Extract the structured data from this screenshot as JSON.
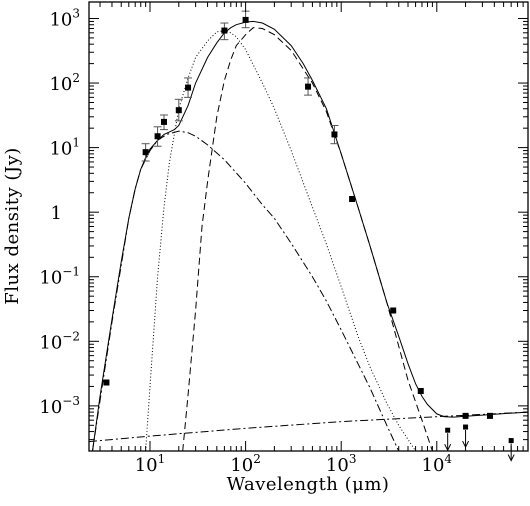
{
  "chart_data": {
    "type": "scatter",
    "title": "",
    "xlabel": "Wavelength (μm)",
    "ylabel": "Flux density (Jy)",
    "xscale": "log",
    "yscale": "log",
    "xlim": [
      2.3,
      90000
    ],
    "ylim": [
      0.0002,
      1800
    ],
    "grid": false,
    "legend": "none",
    "x_ticks": [
      {
        "value": 10,
        "base": "10",
        "exp": "1"
      },
      {
        "value": 100,
        "base": "10",
        "exp": "2"
      },
      {
        "value": 1000,
        "base": "10",
        "exp": "3"
      },
      {
        "value": 10000,
        "base": "10",
        "exp": "4"
      }
    ],
    "y_ticks": [
      {
        "value": 1000,
        "base": "10",
        "exp": "3"
      },
      {
        "value": 100,
        "base": "10",
        "exp": "2"
      },
      {
        "value": 10,
        "base": "10",
        "exp": "1"
      },
      {
        "value": 1,
        "base": "1",
        "exp": ""
      },
      {
        "value": 0.1,
        "base": "10",
        "exp": "−1"
      },
      {
        "value": 0.01,
        "base": "10",
        "exp": "−2"
      },
      {
        "value": 0.001,
        "base": "10",
        "exp": "−3"
      }
    ],
    "points": [
      {
        "x": 3.5,
        "y": 0.0023,
        "lo": 0.0023,
        "hi": 0.0023
      },
      {
        "x": 9,
        "y": 8.5,
        "lo": 6.2,
        "hi": 11.5
      },
      {
        "x": 12,
        "y": 15,
        "lo": 10.5,
        "hi": 21
      },
      {
        "x": 14,
        "y": 25,
        "lo": 19,
        "hi": 32
      },
      {
        "x": 20,
        "y": 38,
        "lo": 26,
        "hi": 56
      },
      {
        "x": 25,
        "y": 85,
        "lo": 60,
        "hi": 120
      },
      {
        "x": 60,
        "y": 650,
        "lo": 470,
        "hi": 850
      },
      {
        "x": 100,
        "y": 950,
        "lo": 720,
        "hi": 1300
      },
      {
        "x": 450,
        "y": 88,
        "lo": 65,
        "hi": 120
      },
      {
        "x": 850,
        "y": 16,
        "lo": 11.5,
        "hi": 22
      },
      {
        "x": 1300,
        "y": 1.6,
        "lo": 1.6,
        "hi": 1.6
      },
      {
        "x": 3500,
        "y": 0.03,
        "lo": 0.03,
        "hi": 0.03
      },
      {
        "x": 6800,
        "y": 0.0017,
        "lo": 0.0017,
        "hi": 0.0017
      },
      {
        "x": 20000,
        "y": 0.0007,
        "lo": 0.0007,
        "hi": 0.0007
      },
      {
        "x": 36000,
        "y": 0.0007,
        "lo": 0.0007,
        "hi": 0.0007
      }
    ],
    "upper_limits": [
      {
        "x": 13000,
        "y": 0.00042
      },
      {
        "x": 20000,
        "y": 0.00047
      },
      {
        "x": 60000,
        "y": 0.00029
      }
    ],
    "model_curves": [
      {
        "style": "solid",
        "points": [
          [
            2.5,
            0.0002
          ],
          [
            3,
            0.0014
          ],
          [
            4,
            0.022
          ],
          [
            5,
            0.17
          ],
          [
            6,
            0.8
          ],
          [
            7,
            2.3
          ],
          [
            8,
            4.6
          ],
          [
            9,
            7
          ],
          [
            10,
            9.5
          ],
          [
            12,
            13
          ],
          [
            14,
            16
          ],
          [
            16,
            17.5
          ],
          [
            18,
            19
          ],
          [
            20,
            22
          ],
          [
            25,
            45
          ],
          [
            30,
            100
          ],
          [
            40,
            250
          ],
          [
            50,
            420
          ],
          [
            60,
            600
          ],
          [
            70,
            720
          ],
          [
            80,
            800
          ],
          [
            100,
            880
          ],
          [
            120,
            900
          ],
          [
            150,
            850
          ],
          [
            200,
            680
          ],
          [
            300,
            380
          ],
          [
            400,
            200
          ],
          [
            500,
            110
          ],
          [
            700,
            40
          ],
          [
            1000,
            8
          ],
          [
            1500,
            1.2
          ],
          [
            2000,
            0.3
          ],
          [
            3000,
            0.04
          ],
          [
            4000,
            0.012
          ],
          [
            5000,
            0.0045
          ],
          [
            6000,
            0.0022
          ],
          [
            7000,
            0.0014
          ],
          [
            8000,
            0.00105
          ],
          [
            10000,
            0.00075
          ],
          [
            12000,
            0.00068
          ],
          [
            15000,
            0.00067
          ],
          [
            20000,
            0.00069
          ],
          [
            30000,
            0.00072
          ],
          [
            50000,
            0.00076
          ],
          [
            90000,
            0.0008
          ]
        ]
      },
      {
        "style": "dashed",
        "points": [
          [
            22,
            0.0002
          ],
          [
            25,
            0.0015
          ],
          [
            30,
            0.03
          ],
          [
            35,
            0.6
          ],
          [
            40,
            3
          ],
          [
            50,
            30
          ],
          [
            60,
            110
          ],
          [
            70,
            230
          ],
          [
            80,
            380
          ],
          [
            100,
            560
          ],
          [
            120,
            720
          ],
          [
            150,
            700
          ],
          [
            200,
            560
          ],
          [
            300,
            320
          ],
          [
            500,
            100
          ],
          [
            700,
            36
          ],
          [
            1000,
            8
          ],
          [
            1500,
            1.2
          ],
          [
            2000,
            0.3
          ],
          [
            3000,
            0.04
          ],
          [
            5000,
            0.0025
          ],
          [
            7000,
            0.0006
          ],
          [
            9000,
            0.0002
          ]
        ]
      },
      {
        "style": "dotted",
        "points": [
          [
            9,
            0.0002
          ],
          [
            10,
            0.002
          ],
          [
            12,
            0.1
          ],
          [
            14,
            1.2
          ],
          [
            16,
            6
          ],
          [
            20,
            40
          ],
          [
            25,
            120
          ],
          [
            30,
            250
          ],
          [
            40,
            450
          ],
          [
            50,
            620
          ],
          [
            60,
            650
          ],
          [
            70,
            600
          ],
          [
            80,
            520
          ],
          [
            100,
            330
          ],
          [
            150,
            100
          ],
          [
            200,
            40
          ],
          [
            300,
            9
          ],
          [
            500,
            1.2
          ],
          [
            700,
            0.32
          ],
          [
            1000,
            0.07
          ],
          [
            1500,
            0.012
          ],
          [
            2000,
            0.004
          ],
          [
            3000,
            0.0011
          ],
          [
            4000,
            0.0005
          ],
          [
            6000,
            0.0002
          ]
        ]
      },
      {
        "style": "dashdot",
        "points": [
          [
            2.5,
            0.0002
          ],
          [
            3,
            0.0012
          ],
          [
            4,
            0.02
          ],
          [
            5,
            0.15
          ],
          [
            6,
            0.8
          ],
          [
            7,
            2.3
          ],
          [
            8,
            4.6
          ],
          [
            10,
            9
          ],
          [
            12,
            13
          ],
          [
            15,
            16
          ],
          [
            20,
            18
          ],
          [
            25,
            17
          ],
          [
            30,
            15
          ],
          [
            40,
            11
          ],
          [
            60,
            6.5
          ],
          [
            100,
            2.8
          ],
          [
            150,
            1.3
          ],
          [
            200,
            0.8
          ],
          [
            300,
            0.33
          ],
          [
            500,
            0.1
          ],
          [
            700,
            0.042
          ],
          [
            1000,
            0.015
          ],
          [
            1500,
            0.0045
          ],
          [
            2000,
            0.0019
          ],
          [
            3000,
            0.0005
          ],
          [
            4000,
            0.0002
          ]
        ]
      },
      {
        "style": "dashdot",
        "points": [
          [
            2.3,
            0.00028
          ],
          [
            10,
            0.00034
          ],
          [
            100,
            0.00045
          ],
          [
            1000,
            0.00057
          ],
          [
            10000,
            0.00068
          ],
          [
            90000,
            0.0008
          ]
        ]
      }
    ]
  }
}
